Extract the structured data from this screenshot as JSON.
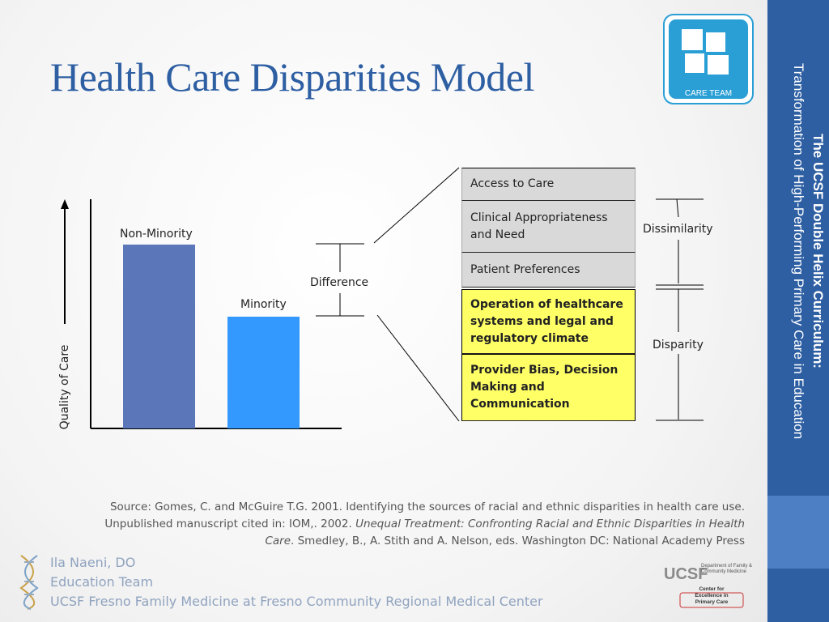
{
  "header": {
    "title": "Health Care Disparities Model"
  },
  "sidebar": {
    "logo_label": "CARE TEAM",
    "curriculum_title": "The UCSF Double Helix Curriculum:",
    "curriculum_subtitle": "Transformation of High-Performing Primary Care in Education"
  },
  "diagram": {
    "y_axis_label": "Quality of Care",
    "bar_labels": [
      "Non-Minority",
      "Minority"
    ],
    "difference_label": "Difference",
    "factors": [
      {
        "text": "Access to Care",
        "highlight": false
      },
      {
        "text": "Clinical Appropriateness and Need",
        "highlight": false
      },
      {
        "text": "Patient Preferences",
        "highlight": false
      },
      {
        "text": "Operation of healthcare systems and legal and regulatory climate",
        "highlight": true
      },
      {
        "text": "Provider Bias, Decision Making and Communication",
        "highlight": true
      }
    ],
    "dissimilarity_label": "Dissimilarity",
    "disparity_label": "Disparity"
  },
  "source": {
    "segments": [
      {
        "text": "Source: Gomes, C. and McGuire T.G. 2001. Identifying the sources of racial and ethnic disparities in health care use. Unpublished manuscript cited in: IOM,. 2002. ",
        "italic": false
      },
      {
        "text": "Unequal Treatment: Confronting Racial and Ethnic Disparities in Health Care",
        "italic": true
      },
      {
        "text": ". Smedley, B., A. Stith and A. Nelson, eds. Washington DC: National Academy Press",
        "italic": false
      }
    ]
  },
  "footer": {
    "lines": [
      "Ila Naeni, DO",
      "Education Team",
      "UCSF Fresno Family Medicine at Fresno Community Regional Medical Center"
    ],
    "logo": {
      "brand": "UCSF",
      "department": "Department of Family & Community Medicine",
      "center": "Center for Excellence in Primary Care"
    }
  }
}
